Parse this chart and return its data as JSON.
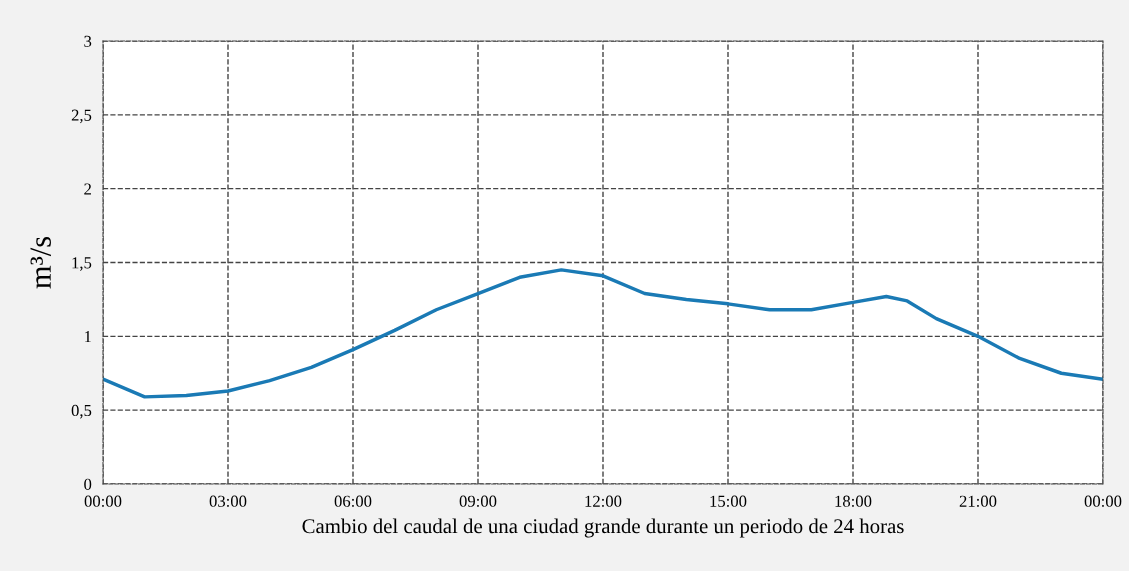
{
  "chart_data": {
    "type": "line",
    "xlabel": "Cambio del caudal de una ciudad grande durante un periodo de 24 horas",
    "ylabel": "m³/s",
    "x": [
      0,
      1,
      2,
      3,
      4,
      5,
      6,
      7,
      8,
      9,
      10,
      11,
      12,
      13,
      14,
      15,
      16,
      17,
      18,
      18.8,
      19.3,
      20,
      21,
      22,
      23,
      24
    ],
    "series": [
      {
        "color": "#1a7ab5",
        "values": [
          0.71,
          0.59,
          0.6,
          0.63,
          0.7,
          0.79,
          0.91,
          1.04,
          1.18,
          1.29,
          1.4,
          1.45,
          1.41,
          1.29,
          1.25,
          1.22,
          1.18,
          1.18,
          1.23,
          1.27,
          1.24,
          1.12,
          1.0,
          0.85,
          0.75,
          0.71
        ]
      }
    ],
    "xlim": [
      0,
      24
    ],
    "ylim": [
      0,
      3
    ],
    "xticks": [
      {
        "value": 0,
        "label": "00:00"
      },
      {
        "value": 3,
        "label": "03:00"
      },
      {
        "value": 6,
        "label": "06:00"
      },
      {
        "value": 9,
        "label": "09:00"
      },
      {
        "value": 12,
        "label": "12:00"
      },
      {
        "value": 15,
        "label": "15:00"
      },
      {
        "value": 18,
        "label": "18:00"
      },
      {
        "value": 21,
        "label": "21:00"
      },
      {
        "value": 24,
        "label": "00:00"
      }
    ],
    "yticks": [
      0,
      {
        "value": 0.5,
        "label": "0,5"
      },
      1,
      {
        "value": 1.5,
        "label": "1,5"
      },
      2,
      {
        "value": 2.5,
        "label": "2,5"
      },
      3
    ],
    "grid": true,
    "line_style": "solid"
  }
}
